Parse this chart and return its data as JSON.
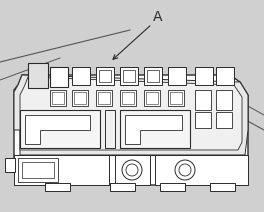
{
  "bg_color": "#ffffff",
  "line_color": "#2a2a2a",
  "label_A": "A",
  "figsize": [
    2.64,
    2.12
  ],
  "dpi": 100,
  "bg_gray": "#d0d0d0",
  "img_gray": "#c8c8c8"
}
